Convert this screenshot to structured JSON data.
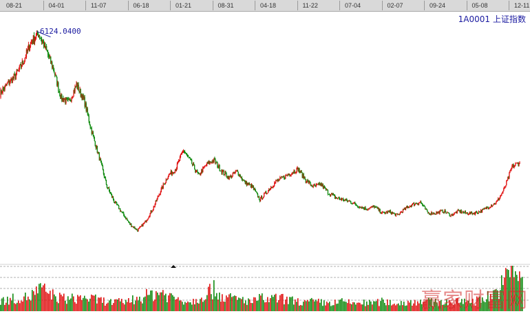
{
  "axis": {
    "dates": [
      "08-21",
      "04-01",
      "11-07",
      "06-18",
      "01-21",
      "08-31",
      "04-18",
      "11-22",
      "07-04",
      "02-07",
      "09-24",
      "05-08",
      "12-11"
    ]
  },
  "header": {
    "code": "1A0001",
    "name": "上证指数"
  },
  "annotation": {
    "peak_value": "6124.0400"
  },
  "watermark": {
    "text": "赢家财富网"
  },
  "colors": {
    "up": "#e01010",
    "down": "#108a10",
    "label": "#1a1aa0",
    "grid": "#b0b0b0"
  },
  "chart_data": {
    "type": "line",
    "x_labels": [
      "08-21",
      "04-01",
      "11-07",
      "06-18",
      "01-21",
      "08-31",
      "04-18",
      "11-22",
      "07-04",
      "02-07",
      "09-24",
      "05-08",
      "12-11"
    ],
    "series": [
      {
        "values": [
          4750,
          4980,
          5150,
          5450,
          5900,
          6124,
          5750,
          5300,
          4650,
          4550,
          4950,
          4600,
          3900,
          3300,
          2650,
          2300,
          2050,
          1800,
          1664,
          1850,
          2150,
          2550,
          2900,
          3050,
          3478,
          3200,
          2900,
          3150,
          3250,
          3000,
          2850,
          3000,
          2750,
          2650,
          2350,
          2550,
          2750,
          2850,
          2950,
          3050,
          2800,
          2650,
          2700,
          2500,
          2400,
          2350,
          2300,
          2200,
          2150,
          2200,
          2050,
          2080,
          2000,
          2150,
          2250,
          2300,
          2050,
          2050,
          2100,
          2000,
          2100,
          2050,
          2050,
          2100,
          2200,
          2300,
          2600,
          3100,
          3200
        ]
      }
    ],
    "ylim": [
      1500,
      6400
    ],
    "volume_relative": [
      0.25,
      0.25,
      0.3,
      0.3,
      0.35,
      0.5,
      0.45,
      0.35,
      0.3,
      0.28,
      0.3,
      0.32,
      0.28,
      0.25,
      0.22,
      0.2,
      0.22,
      0.25,
      0.3,
      0.35,
      0.4,
      0.45,
      0.35,
      0.3,
      0.25,
      0.22,
      0.3,
      0.45,
      0.5,
      0.35,
      0.3,
      0.28,
      0.25,
      0.22,
      0.3,
      0.25,
      0.3,
      0.28,
      0.25,
      0.22,
      0.2,
      0.22,
      0.2,
      0.18,
      0.2,
      0.22,
      0.18,
      0.2,
      0.18,
      0.2,
      0.22,
      0.2,
      0.18,
      0.2,
      0.22,
      0.25,
      0.22,
      0.2,
      0.22,
      0.2,
      0.22,
      0.25,
      0.22,
      0.3,
      0.35,
      0.45,
      0.7,
      1.0,
      0.85
    ],
    "grid": true,
    "legend": "top-right"
  }
}
